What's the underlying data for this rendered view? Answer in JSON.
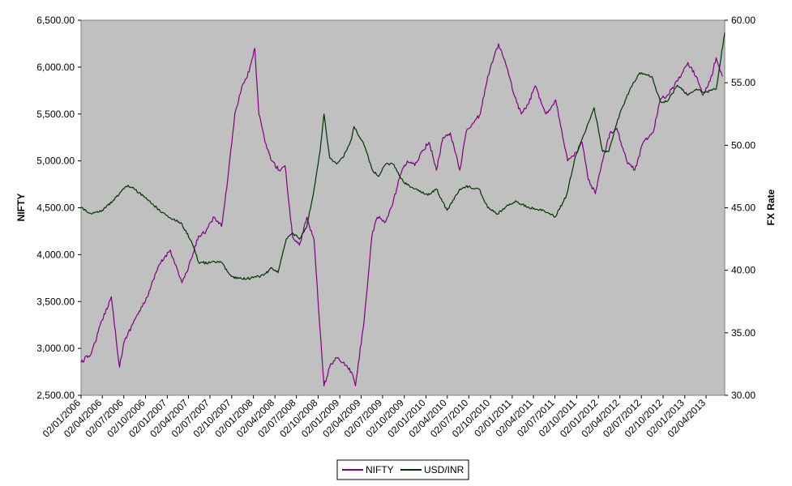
{
  "chart_data": {
    "type": "line",
    "title": "",
    "ylabel": "NIFTY",
    "y2label": "FX Rate",
    "ylim": [
      2500,
      6500
    ],
    "y2lim": [
      30,
      60
    ],
    "yticks": [
      "2,500.00",
      "3,000.00",
      "3,500.00",
      "4,000.00",
      "4,500.00",
      "5,000.00",
      "5,500.00",
      "6,000.00",
      "6,500.00"
    ],
    "y2ticks": [
      "30.00",
      "35.00",
      "40.00",
      "45.00",
      "50.00",
      "55.00",
      "60.00"
    ],
    "xticks": [
      "02/01/2006",
      "02/04/2006",
      "02/07/2006",
      "02/10/2006",
      "02/01/2007",
      "02/04/2007",
      "02/07/2007",
      "02/10/2007",
      "02/01/2008",
      "02/04/2008",
      "02/07/2008",
      "02/10/2008",
      "02/01/2009",
      "02/04/2009",
      "02/07/2009",
      "02/10/2009",
      "02/01/2010",
      "02/04/2010",
      "02/07/2010",
      "02/10/2010",
      "02/01/2011",
      "02/04/2011",
      "02/07/2011",
      "02/10/2011",
      "02/01/2012",
      "02/04/2012",
      "02/07/2012",
      "02/10/2012",
      "02/01/2013",
      "02/04/2013"
    ],
    "grid": false,
    "legend": "bottom",
    "background": "#c0c0c0",
    "series": [
      {
        "name": "NIFTY",
        "axis": "left",
        "color": "#800080",
        "x": [
          "2006-01-02",
          "2006-02-15",
          "2006-04-01",
          "2006-05-10",
          "2006-06-14",
          "2006-07-01",
          "2006-08-15",
          "2006-10-01",
          "2006-12-01",
          "2007-01-15",
          "2007-03-05",
          "2007-04-01",
          "2007-05-15",
          "2007-06-15",
          "2007-07-20",
          "2007-08-20",
          "2007-09-15",
          "2007-10-15",
          "2007-11-15",
          "2007-12-15",
          "2008-01-08",
          "2008-01-25",
          "2008-02-20",
          "2008-03-20",
          "2008-04-20",
          "2008-05-15",
          "2008-06-15",
          "2008-07-15",
          "2008-08-15",
          "2008-09-15",
          "2008-10-10",
          "2008-10-27",
          "2008-11-20",
          "2008-12-15",
          "2009-01-15",
          "2009-02-20",
          "2009-03-09",
          "2009-04-15",
          "2009-05-18",
          "2009-06-10",
          "2009-07-15",
          "2009-08-15",
          "2009-09-15",
          "2009-10-15",
          "2009-11-15",
          "2009-12-15",
          "2010-01-15",
          "2010-02-15",
          "2010-03-15",
          "2010-04-15",
          "2010-05-25",
          "2010-06-20",
          "2010-07-20",
          "2010-08-20",
          "2010-09-20",
          "2010-11-05",
          "2010-12-10",
          "2011-01-10",
          "2011-02-10",
          "2011-03-10",
          "2011-04-10",
          "2011-05-25",
          "2011-07-05",
          "2011-08-25",
          "2011-09-20",
          "2011-10-25",
          "2011-11-20",
          "2011-12-20",
          "2012-01-20",
          "2012-02-20",
          "2012-03-20",
          "2012-05-01",
          "2012-06-04",
          "2012-07-10",
          "2012-08-20",
          "2012-09-20",
          "2012-10-20",
          "2012-12-01",
          "2013-01-15",
          "2013-02-20",
          "2013-03-20",
          "2013-04-19",
          "2013-05-15",
          "2013-06-10"
        ],
        "values": [
          2850,
          2950,
          3300,
          3550,
          2800,
          3050,
          3300,
          3500,
          3900,
          4050,
          3700,
          3850,
          4200,
          4250,
          4400,
          4300,
          4800,
          5500,
          5800,
          5950,
          6200,
          5500,
          5200,
          5000,
          4900,
          4950,
          4200,
          4100,
          4400,
          4150,
          3200,
          2600,
          2800,
          2900,
          2850,
          2750,
          2600,
          3300,
          4200,
          4400,
          4350,
          4550,
          4850,
          5000,
          4950,
          5100,
          5200,
          4900,
          5250,
          5300,
          4900,
          5300,
          5400,
          5500,
          5900,
          6250,
          6000,
          5700,
          5500,
          5600,
          5800,
          5500,
          5650,
          5000,
          5050,
          5200,
          4800,
          4650,
          5000,
          5300,
          5350,
          5000,
          4900,
          5200,
          5300,
          5650,
          5700,
          5850,
          6050,
          5900,
          5700,
          5850,
          6100,
          5900
        ]
      },
      {
        "name": "USD/INR",
        "axis": "right",
        "color": "#003300",
        "x": [
          "2006-01-02",
          "2006-02-15",
          "2006-04-01",
          "2006-05-15",
          "2006-06-15",
          "2006-07-20",
          "2006-08-15",
          "2006-10-01",
          "2006-12-01",
          "2007-01-15",
          "2007-03-01",
          "2007-04-15",
          "2007-05-15",
          "2007-07-01",
          "2007-08-15",
          "2007-10-01",
          "2007-11-15",
          "2008-01-01",
          "2008-02-15",
          "2008-03-20",
          "2008-04-15",
          "2008-05-20",
          "2008-06-15",
          "2008-07-15",
          "2008-08-15",
          "2008-09-15",
          "2008-10-10",
          "2008-10-27",
          "2008-11-20",
          "2008-12-20",
          "2009-01-15",
          "2009-02-20",
          "2009-03-03",
          "2009-04-15",
          "2009-05-20",
          "2009-06-15",
          "2009-07-15",
          "2009-08-15",
          "2009-10-01",
          "2009-11-15",
          "2010-01-10",
          "2010-02-15",
          "2010-04-01",
          "2010-05-25",
          "2010-06-20",
          "2010-08-15",
          "2010-09-20",
          "2010-11-01",
          "2010-12-15",
          "2011-01-20",
          "2011-03-15",
          "2011-05-15",
          "2011-07-05",
          "2011-08-20",
          "2011-09-25",
          "2011-11-25",
          "2011-12-15",
          "2012-01-20",
          "2012-02-15",
          "2012-04-01",
          "2012-05-15",
          "2012-06-25",
          "2012-08-15",
          "2012-09-20",
          "2012-10-20",
          "2012-12-01",
          "2013-01-15",
          "2013-02-20",
          "2013-03-25",
          "2013-05-15",
          "2013-06-20"
        ],
        "values": [
          45.0,
          44.5,
          44.8,
          45.5,
          46.2,
          46.8,
          46.5,
          45.8,
          44.8,
          44.2,
          43.8,
          42.3,
          40.6,
          40.6,
          40.7,
          39.5,
          39.3,
          39.4,
          39.6,
          40.2,
          39.8,
          42.5,
          43.0,
          42.5,
          43.5,
          46.5,
          49.5,
          52.5,
          49.0,
          48.5,
          49.0,
          50.5,
          51.5,
          50.0,
          48.0,
          47.5,
          48.5,
          48.5,
          47.0,
          46.5,
          46.0,
          46.5,
          44.8,
          46.5,
          46.7,
          46.5,
          45.0,
          44.5,
          45.2,
          45.5,
          45.0,
          44.8,
          44.3,
          46.0,
          49.0,
          52.0,
          53.0,
          49.5,
          49.5,
          52.5,
          54.5,
          55.8,
          55.5,
          53.5,
          53.5,
          54.8,
          54.0,
          54.5,
          54.2,
          54.5,
          59.0
        ]
      }
    ]
  }
}
